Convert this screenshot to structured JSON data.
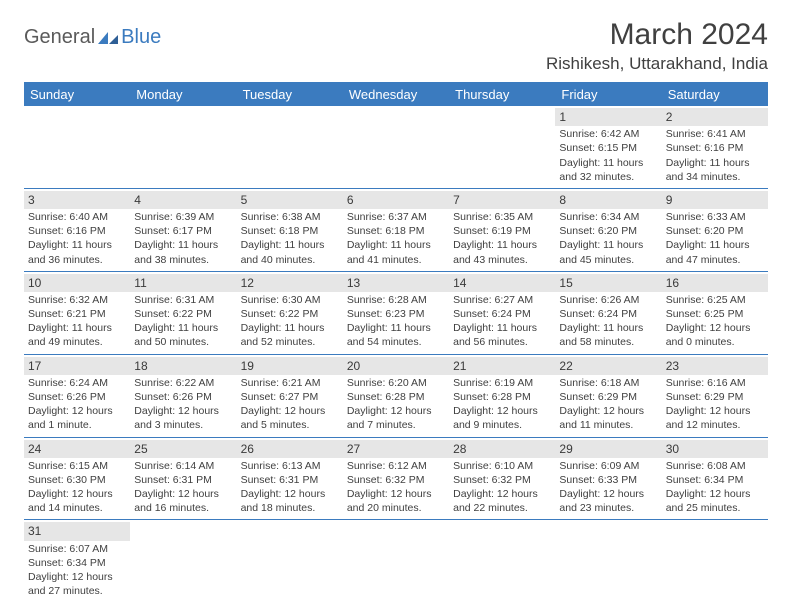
{
  "logo": {
    "part1": "General",
    "part2": "Blue"
  },
  "title": "March 2024",
  "location": "Rishikesh, Uttarakhand, India",
  "colors": {
    "header_bg": "#3b7bbf",
    "header_text": "#ffffff",
    "daynum_bg": "#e6e6e6",
    "text": "#404040",
    "rule": "#3b7bbf"
  },
  "weekdays": [
    "Sunday",
    "Monday",
    "Tuesday",
    "Wednesday",
    "Thursday",
    "Friday",
    "Saturday"
  ],
  "weeks": [
    [
      null,
      null,
      null,
      null,
      null,
      {
        "d": "1",
        "sr": "6:42 AM",
        "ss": "6:15 PM",
        "dl": "11 hours and 32 minutes."
      },
      {
        "d": "2",
        "sr": "6:41 AM",
        "ss": "6:16 PM",
        "dl": "11 hours and 34 minutes."
      }
    ],
    [
      {
        "d": "3",
        "sr": "6:40 AM",
        "ss": "6:16 PM",
        "dl": "11 hours and 36 minutes."
      },
      {
        "d": "4",
        "sr": "6:39 AM",
        "ss": "6:17 PM",
        "dl": "11 hours and 38 minutes."
      },
      {
        "d": "5",
        "sr": "6:38 AM",
        "ss": "6:18 PM",
        "dl": "11 hours and 40 minutes."
      },
      {
        "d": "6",
        "sr": "6:37 AM",
        "ss": "6:18 PM",
        "dl": "11 hours and 41 minutes."
      },
      {
        "d": "7",
        "sr": "6:35 AM",
        "ss": "6:19 PM",
        "dl": "11 hours and 43 minutes."
      },
      {
        "d": "8",
        "sr": "6:34 AM",
        "ss": "6:20 PM",
        "dl": "11 hours and 45 minutes."
      },
      {
        "d": "9",
        "sr": "6:33 AM",
        "ss": "6:20 PM",
        "dl": "11 hours and 47 minutes."
      }
    ],
    [
      {
        "d": "10",
        "sr": "6:32 AM",
        "ss": "6:21 PM",
        "dl": "11 hours and 49 minutes."
      },
      {
        "d": "11",
        "sr": "6:31 AM",
        "ss": "6:22 PM",
        "dl": "11 hours and 50 minutes."
      },
      {
        "d": "12",
        "sr": "6:30 AM",
        "ss": "6:22 PM",
        "dl": "11 hours and 52 minutes."
      },
      {
        "d": "13",
        "sr": "6:28 AM",
        "ss": "6:23 PM",
        "dl": "11 hours and 54 minutes."
      },
      {
        "d": "14",
        "sr": "6:27 AM",
        "ss": "6:24 PM",
        "dl": "11 hours and 56 minutes."
      },
      {
        "d": "15",
        "sr": "6:26 AM",
        "ss": "6:24 PM",
        "dl": "11 hours and 58 minutes."
      },
      {
        "d": "16",
        "sr": "6:25 AM",
        "ss": "6:25 PM",
        "dl": "12 hours and 0 minutes."
      }
    ],
    [
      {
        "d": "17",
        "sr": "6:24 AM",
        "ss": "6:26 PM",
        "dl": "12 hours and 1 minute."
      },
      {
        "d": "18",
        "sr": "6:22 AM",
        "ss": "6:26 PM",
        "dl": "12 hours and 3 minutes."
      },
      {
        "d": "19",
        "sr": "6:21 AM",
        "ss": "6:27 PM",
        "dl": "12 hours and 5 minutes."
      },
      {
        "d": "20",
        "sr": "6:20 AM",
        "ss": "6:28 PM",
        "dl": "12 hours and 7 minutes."
      },
      {
        "d": "21",
        "sr": "6:19 AM",
        "ss": "6:28 PM",
        "dl": "12 hours and 9 minutes."
      },
      {
        "d": "22",
        "sr": "6:18 AM",
        "ss": "6:29 PM",
        "dl": "12 hours and 11 minutes."
      },
      {
        "d": "23",
        "sr": "6:16 AM",
        "ss": "6:29 PM",
        "dl": "12 hours and 12 minutes."
      }
    ],
    [
      {
        "d": "24",
        "sr": "6:15 AM",
        "ss": "6:30 PM",
        "dl": "12 hours and 14 minutes."
      },
      {
        "d": "25",
        "sr": "6:14 AM",
        "ss": "6:31 PM",
        "dl": "12 hours and 16 minutes."
      },
      {
        "d": "26",
        "sr": "6:13 AM",
        "ss": "6:31 PM",
        "dl": "12 hours and 18 minutes."
      },
      {
        "d": "27",
        "sr": "6:12 AM",
        "ss": "6:32 PM",
        "dl": "12 hours and 20 minutes."
      },
      {
        "d": "28",
        "sr": "6:10 AM",
        "ss": "6:32 PM",
        "dl": "12 hours and 22 minutes."
      },
      {
        "d": "29",
        "sr": "6:09 AM",
        "ss": "6:33 PM",
        "dl": "12 hours and 23 minutes."
      },
      {
        "d": "30",
        "sr": "6:08 AM",
        "ss": "6:34 PM",
        "dl": "12 hours and 25 minutes."
      }
    ],
    [
      {
        "d": "31",
        "sr": "6:07 AM",
        "ss": "6:34 PM",
        "dl": "12 hours and 27 minutes."
      },
      null,
      null,
      null,
      null,
      null,
      null
    ]
  ],
  "labels": {
    "sunrise": "Sunrise: ",
    "sunset": "Sunset: ",
    "daylight": "Daylight: "
  }
}
